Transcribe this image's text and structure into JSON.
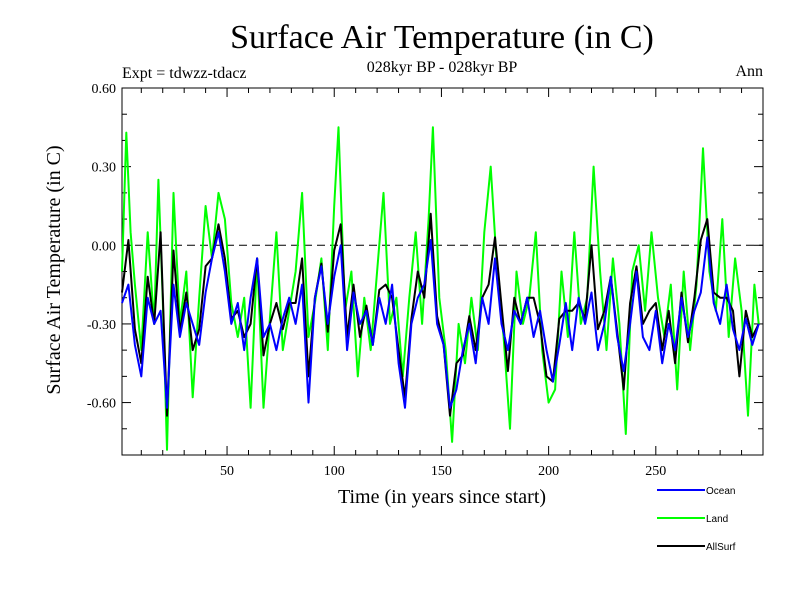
{
  "chart_data": {
    "type": "line",
    "title": "Surface Air Temperature (in C)",
    "subtitle": "028kyr BP - 028kyr BP",
    "left_note": "Expt = tdwzz-tdacz",
    "right_note": "Ann",
    "xlabel": "Time (in years since start)",
    "ylabel": "Surface Air Temperature (in C)",
    "xlim": [
      1,
      300
    ],
    "ylim": [
      -0.8,
      0.6
    ],
    "x_ticks": [
      50,
      100,
      150,
      200,
      250
    ],
    "x_tick_labels": [
      "50",
      "100",
      "150",
      "200",
      "250"
    ],
    "y_ticks": [
      0.6,
      0.3,
      0.0,
      -0.3,
      -0.6
    ],
    "y_tick_labels": [
      "0.60",
      "0.30",
      "0.00",
      "-0.30",
      "-0.60"
    ],
    "zero_line": 0.0,
    "legend_placement": "bottom-right",
    "series": [
      {
        "name": "Ocean",
        "color": "#0000ff",
        "points": [
          [
            1,
            -0.22
          ],
          [
            4,
            -0.15
          ],
          [
            7,
            -0.38
          ],
          [
            10,
            -0.5
          ],
          [
            13,
            -0.2
          ],
          [
            16,
            -0.3
          ],
          [
            19,
            -0.25
          ],
          [
            22,
            -0.62
          ],
          [
            25,
            -0.15
          ],
          [
            28,
            -0.35
          ],
          [
            31,
            -0.22
          ],
          [
            34,
            -0.3
          ],
          [
            37,
            -0.38
          ],
          [
            40,
            -0.18
          ],
          [
            43,
            -0.05
          ],
          [
            46,
            0.05
          ],
          [
            49,
            -0.1
          ],
          [
            52,
            -0.3
          ],
          [
            55,
            -0.22
          ],
          [
            58,
            -0.4
          ],
          [
            61,
            -0.2
          ],
          [
            64,
            -0.05
          ],
          [
            67,
            -0.35
          ],
          [
            70,
            -0.3
          ],
          [
            73,
            -0.4
          ],
          [
            76,
            -0.28
          ],
          [
            79,
            -0.2
          ],
          [
            82,
            -0.3
          ],
          [
            85,
            -0.15
          ],
          [
            88,
            -0.6
          ],
          [
            91,
            -0.2
          ],
          [
            94,
            -0.08
          ],
          [
            97,
            -0.3
          ],
          [
            100,
            -0.12
          ],
          [
            103,
            0.0
          ],
          [
            106,
            -0.4
          ],
          [
            109,
            -0.18
          ],
          [
            112,
            -0.3
          ],
          [
            115,
            -0.25
          ],
          [
            118,
            -0.38
          ],
          [
            121,
            -0.2
          ],
          [
            124,
            -0.3
          ],
          [
            127,
            -0.15
          ],
          [
            130,
            -0.45
          ],
          [
            133,
            -0.62
          ],
          [
            136,
            -0.3
          ],
          [
            139,
            -0.2
          ],
          [
            142,
            -0.15
          ],
          [
            145,
            0.02
          ],
          [
            148,
            -0.3
          ],
          [
            151,
            -0.38
          ],
          [
            154,
            -0.62
          ],
          [
            157,
            -0.55
          ],
          [
            160,
            -0.4
          ],
          [
            163,
            -0.3
          ],
          [
            166,
            -0.45
          ],
          [
            169,
            -0.2
          ],
          [
            172,
            -0.3
          ],
          [
            175,
            -0.05
          ],
          [
            178,
            -0.3
          ],
          [
            181,
            -0.4
          ],
          [
            184,
            -0.25
          ],
          [
            187,
            -0.3
          ],
          [
            190,
            -0.2
          ],
          [
            193,
            -0.35
          ],
          [
            196,
            -0.25
          ],
          [
            199,
            -0.4
          ],
          [
            202,
            -0.52
          ],
          [
            205,
            -0.38
          ],
          [
            208,
            -0.22
          ],
          [
            211,
            -0.4
          ],
          [
            214,
            -0.2
          ],
          [
            217,
            -0.3
          ],
          [
            220,
            -0.18
          ],
          [
            223,
            -0.4
          ],
          [
            226,
            -0.3
          ],
          [
            229,
            -0.12
          ],
          [
            232,
            -0.35
          ],
          [
            235,
            -0.48
          ],
          [
            238,
            -0.3
          ],
          [
            241,
            -0.1
          ],
          [
            244,
            -0.35
          ],
          [
            247,
            -0.4
          ],
          [
            250,
            -0.25
          ],
          [
            253,
            -0.45
          ],
          [
            256,
            -0.3
          ],
          [
            259,
            -0.4
          ],
          [
            262,
            -0.2
          ],
          [
            265,
            -0.35
          ],
          [
            268,
            -0.25
          ],
          [
            271,
            -0.18
          ],
          [
            274,
            0.03
          ],
          [
            277,
            -0.22
          ],
          [
            280,
            -0.3
          ],
          [
            283,
            -0.15
          ],
          [
            286,
            -0.32
          ],
          [
            289,
            -0.4
          ],
          [
            292,
            -0.28
          ],
          [
            295,
            -0.38
          ],
          [
            298,
            -0.3
          ]
        ]
      },
      {
        "name": "Land",
        "color": "#00ff00",
        "points": [
          [
            1,
            -0.1
          ],
          [
            3,
            0.43
          ],
          [
            5,
            0.05
          ],
          [
            7,
            -0.15
          ],
          [
            10,
            -0.4
          ],
          [
            13,
            0.05
          ],
          [
            16,
            -0.3
          ],
          [
            18,
            0.25
          ],
          [
            20,
            -0.2
          ],
          [
            22,
            -0.78
          ],
          [
            25,
            0.2
          ],
          [
            28,
            -0.3
          ],
          [
            31,
            -0.1
          ],
          [
            34,
            -0.58
          ],
          [
            37,
            -0.2
          ],
          [
            40,
            0.15
          ],
          [
            43,
            -0.05
          ],
          [
            46,
            0.2
          ],
          [
            49,
            0.1
          ],
          [
            52,
            -0.22
          ],
          [
            55,
            -0.35
          ],
          [
            58,
            -0.2
          ],
          [
            61,
            -0.62
          ],
          [
            64,
            -0.05
          ],
          [
            67,
            -0.62
          ],
          [
            70,
            -0.28
          ],
          [
            73,
            0.05
          ],
          [
            76,
            -0.4
          ],
          [
            79,
            -0.25
          ],
          [
            82,
            -0.1
          ],
          [
            85,
            0.2
          ],
          [
            88,
            -0.35
          ],
          [
            91,
            -0.22
          ],
          [
            94,
            -0.05
          ],
          [
            97,
            -0.4
          ],
          [
            100,
            0.15
          ],
          [
            102,
            0.45
          ],
          [
            105,
            -0.25
          ],
          [
            108,
            -0.1
          ],
          [
            111,
            -0.5
          ],
          [
            114,
            -0.2
          ],
          [
            117,
            -0.4
          ],
          [
            120,
            -0.1
          ],
          [
            123,
            0.2
          ],
          [
            126,
            -0.3
          ],
          [
            129,
            -0.2
          ],
          [
            132,
            -0.5
          ],
          [
            135,
            -0.2
          ],
          [
            138,
            0.05
          ],
          [
            141,
            -0.3
          ],
          [
            144,
            0.1
          ],
          [
            146,
            0.45
          ],
          [
            149,
            -0.2
          ],
          [
            152,
            -0.4
          ],
          [
            155,
            -0.75
          ],
          [
            158,
            -0.3
          ],
          [
            161,
            -0.45
          ],
          [
            164,
            -0.2
          ],
          [
            167,
            -0.4
          ],
          [
            170,
            0.05
          ],
          [
            173,
            0.3
          ],
          [
            176,
            -0.1
          ],
          [
            179,
            -0.35
          ],
          [
            182,
            -0.7
          ],
          [
            185,
            -0.1
          ],
          [
            188,
            -0.3
          ],
          [
            191,
            -0.2
          ],
          [
            194,
            0.05
          ],
          [
            197,
            -0.4
          ],
          [
            200,
            -0.6
          ],
          [
            203,
            -0.55
          ],
          [
            206,
            -0.1
          ],
          [
            209,
            -0.35
          ],
          [
            212,
            0.05
          ],
          [
            215,
            -0.3
          ],
          [
            218,
            -0.2
          ],
          [
            221,
            0.3
          ],
          [
            224,
            -0.1
          ],
          [
            227,
            -0.4
          ],
          [
            230,
            -0.05
          ],
          [
            233,
            -0.3
          ],
          [
            236,
            -0.72
          ],
          [
            239,
            -0.1
          ],
          [
            242,
            0.0
          ],
          [
            245,
            -0.25
          ],
          [
            248,
            0.05
          ],
          [
            251,
            -0.2
          ],
          [
            254,
            -0.35
          ],
          [
            257,
            -0.15
          ],
          [
            260,
            -0.55
          ],
          [
            263,
            -0.1
          ],
          [
            266,
            -0.4
          ],
          [
            269,
            -0.15
          ],
          [
            272,
            0.37
          ],
          [
            275,
            -0.1
          ],
          [
            278,
            -0.25
          ],
          [
            281,
            0.1
          ],
          [
            284,
            -0.35
          ],
          [
            287,
            -0.05
          ],
          [
            290,
            -0.25
          ],
          [
            293,
            -0.65
          ],
          [
            296,
            -0.15
          ],
          [
            298,
            -0.3
          ]
        ]
      },
      {
        "name": "AllSurf",
        "color": "#000000",
        "points": [
          [
            1,
            -0.18
          ],
          [
            4,
            0.02
          ],
          [
            7,
            -0.32
          ],
          [
            10,
            -0.45
          ],
          [
            13,
            -0.12
          ],
          [
            16,
            -0.3
          ],
          [
            19,
            0.05
          ],
          [
            22,
            -0.65
          ],
          [
            25,
            -0.02
          ],
          [
            28,
            -0.33
          ],
          [
            31,
            -0.18
          ],
          [
            34,
            -0.4
          ],
          [
            37,
            -0.32
          ],
          [
            40,
            -0.08
          ],
          [
            43,
            -0.05
          ],
          [
            46,
            0.08
          ],
          [
            49,
            -0.05
          ],
          [
            52,
            -0.28
          ],
          [
            55,
            -0.25
          ],
          [
            58,
            -0.35
          ],
          [
            61,
            -0.3
          ],
          [
            64,
            -0.05
          ],
          [
            67,
            -0.42
          ],
          [
            70,
            -0.3
          ],
          [
            73,
            -0.22
          ],
          [
            76,
            -0.32
          ],
          [
            79,
            -0.22
          ],
          [
            82,
            -0.22
          ],
          [
            85,
            -0.05
          ],
          [
            88,
            -0.5
          ],
          [
            91,
            -0.2
          ],
          [
            94,
            -0.07
          ],
          [
            97,
            -0.33
          ],
          [
            100,
            -0.02
          ],
          [
            103,
            0.08
          ],
          [
            106,
            -0.35
          ],
          [
            109,
            -0.15
          ],
          [
            112,
            -0.35
          ],
          [
            115,
            -0.23
          ],
          [
            118,
            -0.38
          ],
          [
            121,
            -0.17
          ],
          [
            124,
            -0.15
          ],
          [
            127,
            -0.2
          ],
          [
            130,
            -0.4
          ],
          [
            133,
            -0.58
          ],
          [
            136,
            -0.28
          ],
          [
            139,
            -0.1
          ],
          [
            142,
            -0.2
          ],
          [
            145,
            0.12
          ],
          [
            148,
            -0.27
          ],
          [
            151,
            -0.38
          ],
          [
            154,
            -0.65
          ],
          [
            157,
            -0.45
          ],
          [
            160,
            -0.42
          ],
          [
            163,
            -0.27
          ],
          [
            166,
            -0.4
          ],
          [
            169,
            -0.2
          ],
          [
            172,
            -0.15
          ],
          [
            175,
            0.03
          ],
          [
            178,
            -0.23
          ],
          [
            181,
            -0.48
          ],
          [
            184,
            -0.2
          ],
          [
            187,
            -0.3
          ],
          [
            190,
            -0.2
          ],
          [
            193,
            -0.2
          ],
          [
            196,
            -0.3
          ],
          [
            199,
            -0.5
          ],
          [
            202,
            -0.52
          ],
          [
            205,
            -0.28
          ],
          [
            208,
            -0.25
          ],
          [
            211,
            -0.25
          ],
          [
            214,
            -0.22
          ],
          [
            217,
            -0.28
          ],
          [
            220,
            0.0
          ],
          [
            223,
            -0.32
          ],
          [
            226,
            -0.25
          ],
          [
            229,
            -0.12
          ],
          [
            232,
            -0.33
          ],
          [
            235,
            -0.55
          ],
          [
            238,
            -0.22
          ],
          [
            241,
            -0.08
          ],
          [
            244,
            -0.3
          ],
          [
            247,
            -0.25
          ],
          [
            250,
            -0.22
          ],
          [
            253,
            -0.4
          ],
          [
            256,
            -0.25
          ],
          [
            259,
            -0.45
          ],
          [
            262,
            -0.18
          ],
          [
            265,
            -0.37
          ],
          [
            268,
            -0.2
          ],
          [
            271,
            0.02
          ],
          [
            274,
            0.1
          ],
          [
            277,
            -0.18
          ],
          [
            280,
            -0.2
          ],
          [
            283,
            -0.2
          ],
          [
            286,
            -0.25
          ],
          [
            289,
            -0.5
          ],
          [
            292,
            -0.25
          ],
          [
            295,
            -0.35
          ],
          [
            298,
            -0.3
          ]
        ]
      }
    ]
  }
}
